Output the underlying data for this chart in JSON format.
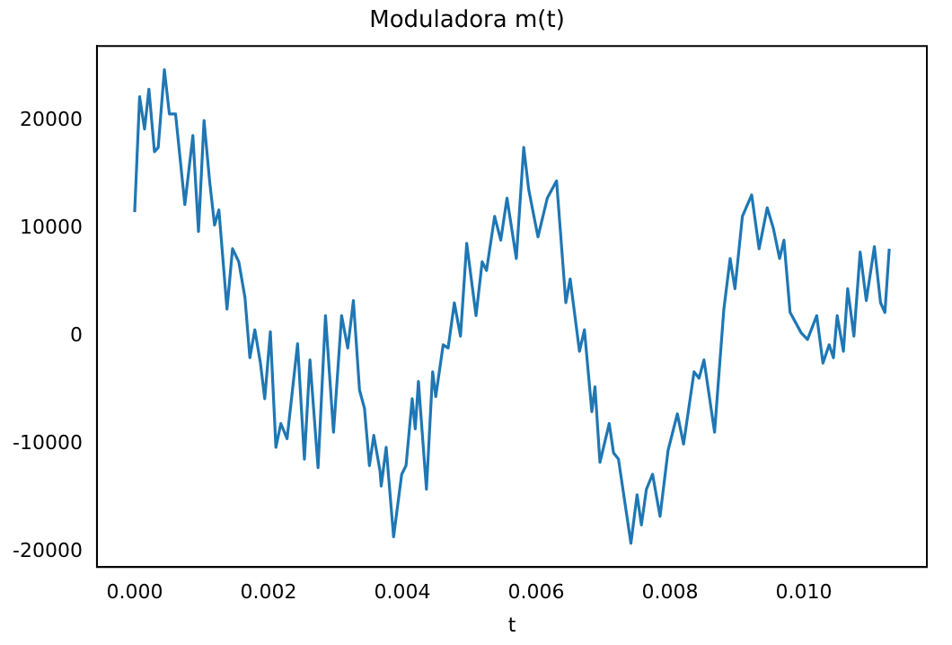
{
  "chart_data": {
    "type": "line",
    "title": "Moduladora m(t)",
    "xlabel": "t",
    "x": [
      0,
      7.4e-05,
      0.000148,
      0.000213,
      0.000296,
      0.000352,
      0.000444,
      0.000519,
      0.000611,
      0.00075,
      0.00087,
      0.000954,
      0.001037,
      0.00112,
      0.001194,
      0.001259,
      0.00138,
      0.001463,
      0.001556,
      0.001648,
      0.001722,
      0.001796,
      0.00188,
      0.001944,
      0.002028,
      0.002111,
      0.002185,
      0.002278,
      0.002435,
      0.002537,
      0.00262,
      0.002741,
      0.002852,
      0.002972,
      0.003093,
      0.003185,
      0.003269,
      0.003361,
      0.003435,
      0.003509,
      0.003574,
      0.003667,
      0.003685,
      0.003759,
      0.00387,
      0.003991,
      0.004056,
      0.004148,
      0.004194,
      0.004241,
      0.004361,
      0.004454,
      0.0045,
      0.004611,
      0.004685,
      0.004778,
      0.00487,
      0.004963,
      0.005102,
      0.005194,
      0.005259,
      0.00538,
      0.005472,
      0.005565,
      0.005704,
      0.005815,
      0.005889,
      0.006028,
      0.006167,
      0.006306,
      0.006444,
      0.006509,
      0.006648,
      0.006722,
      0.006833,
      0.00688,
      0.006954,
      0.007093,
      0.007157,
      0.007231,
      0.007324,
      0.007417,
      0.007509,
      0.007574,
      0.007648,
      0.007741,
      0.007852,
      0.007972,
      0.008111,
      0.008204,
      0.008361,
      0.008435,
      0.008509,
      0.008667,
      0.008806,
      0.0089,
      0.008972,
      0.009083,
      0.009222,
      0.009333,
      0.009454,
      0.009546,
      0.009639,
      0.009704,
      0.009796,
      0.009963,
      0.010056,
      0.010194,
      0.010287,
      0.01038,
      0.010444,
      0.0105,
      0.010593,
      0.010657,
      0.01075,
      0.010843,
      0.010935,
      0.011056,
      0.011148,
      0.011213,
      0.011278
    ],
    "series": [
      {
        "color": "#1f77b4",
        "values": [
          11500,
          22200,
          19200,
          22900,
          17100,
          17500,
          24700,
          20600,
          20600,
          12200,
          18600,
          9700,
          20000,
          14400,
          10300,
          11700,
          2500,
          8100,
          6900,
          3600,
          -2000,
          600,
          -2500,
          -5800,
          400,
          -10300,
          -8100,
          -9500,
          -700,
          -11400,
          -2200,
          -12200,
          1900,
          -8900,
          1900,
          -1100,
          3300,
          -5000,
          -6700,
          -12000,
          -9200,
          -12500,
          -13900,
          -10300,
          -18600,
          -12800,
          -12000,
          -5800,
          -8600,
          -4200,
          -14200,
          -3300,
          -5600,
          -800,
          -1100,
          3100,
          0,
          8600,
          1900,
          6900,
          6100,
          11100,
          8900,
          12800,
          7200,
          17500,
          13600,
          9200,
          12800,
          14400,
          3100,
          5300,
          -1400,
          600,
          -7000,
          -4700,
          -11700,
          -8100,
          -10800,
          -11400,
          -15300,
          -19200,
          -14700,
          -17500,
          -14200,
          -12800,
          -16700,
          -10600,
          -7200,
          -10000,
          -3300,
          -3900,
          -2200,
          -8900,
          2500,
          7200,
          4400,
          11100,
          13100,
          8100,
          11900,
          10000,
          7200,
          8900,
          2200,
          300,
          -300,
          1900,
          -2500,
          -800,
          -2000,
          1900,
          -1400,
          4400,
          0,
          7800,
          3300,
          8300,
          3100,
          2200,
          8100
        ]
      }
    ],
    "xlim": [
      -0.000564,
      0.01184
    ],
    "ylim": [
      -21400,
      26900
    ],
    "xticks": [
      {
        "value": 0,
        "label": "0.000"
      },
      {
        "value": 0.002,
        "label": "0.002"
      },
      {
        "value": 0.004,
        "label": "0.004"
      },
      {
        "value": 0.006,
        "label": "0.006"
      },
      {
        "value": 0.008,
        "label": "0.008"
      },
      {
        "value": 0.01,
        "label": "0.010"
      }
    ],
    "yticks": [
      -20000,
      -10000,
      0,
      10000,
      20000
    ],
    "grid": false,
    "legend": false,
    "marker": "none",
    "line_style": "solid"
  }
}
